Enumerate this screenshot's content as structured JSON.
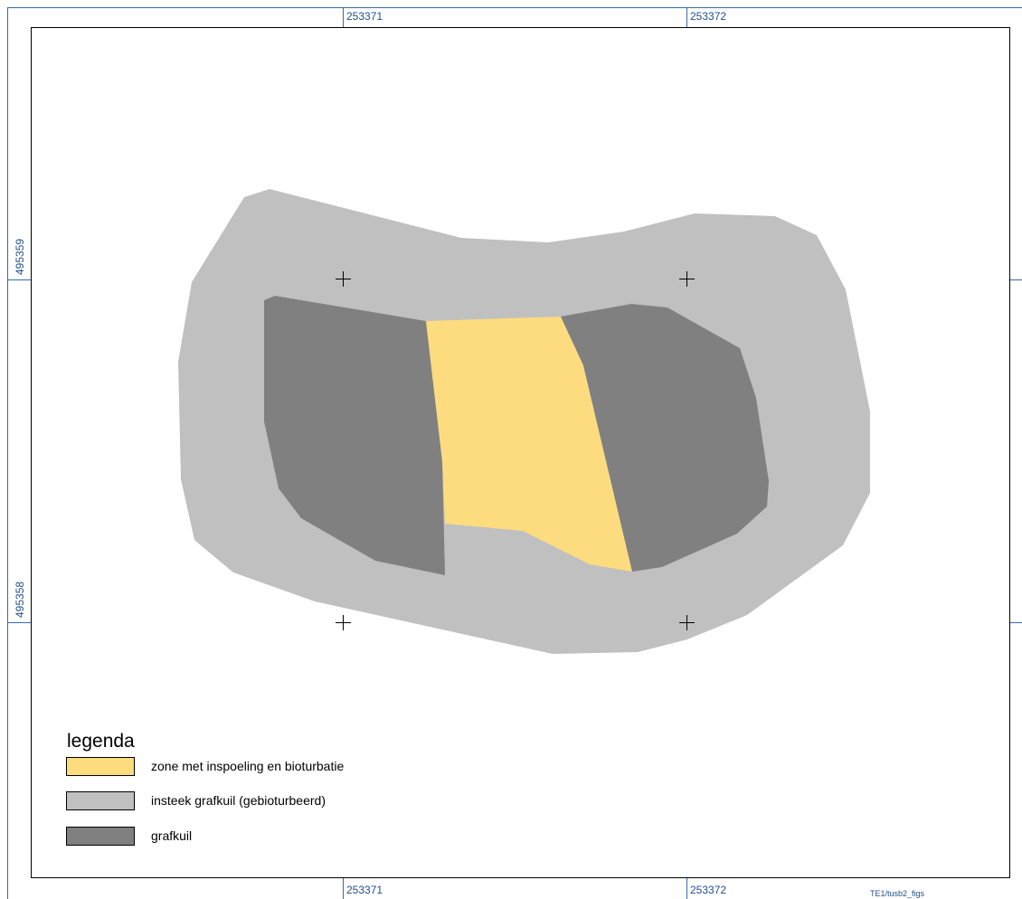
{
  "colors": {
    "coordinate_text": "#1f4e8c",
    "grid_line": "#3a6aa8",
    "frame": "#000000",
    "zone_met_inspoeling": "#fddc7f",
    "insteek_grafkuil": "#c0c0c0",
    "grafkuil": "#808080"
  },
  "coordinates": {
    "top_x": [
      "253371",
      "253372"
    ],
    "bottom_x": [
      "253371",
      "253372"
    ],
    "left_y": [
      "495359",
      "495358"
    ]
  },
  "legend": {
    "title": "legenda",
    "items": [
      {
        "label": "zone met inspoeling en bioturbatie",
        "color": "#fddc7f"
      },
      {
        "label": "insteek grafkuil (gebioturbeerd)",
        "color": "#c0c0c0"
      },
      {
        "label": "grafkuil",
        "color": "#808080"
      }
    ]
  },
  "figure_code": "TE1/tusb2_figs"
}
